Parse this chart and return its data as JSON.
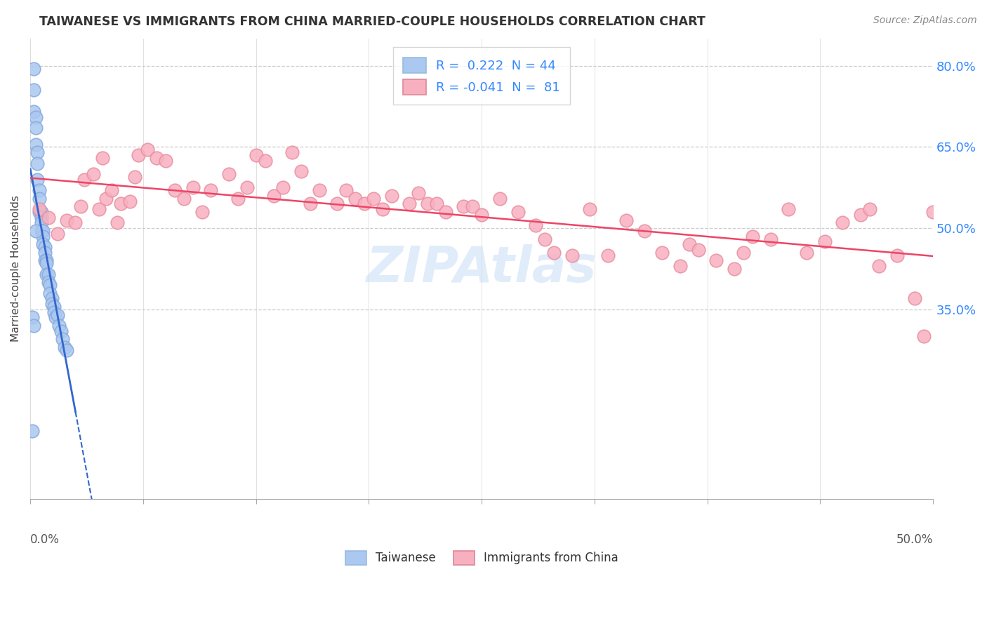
{
  "title": "TAIWANESE VS IMMIGRANTS FROM CHINA MARRIED-COUPLE HOUSEHOLDS CORRELATION CHART",
  "source": "Source: ZipAtlas.com",
  "ylabel": "Married-couple Households",
  "xlim": [
    0.0,
    0.5
  ],
  "ylim": [
    0.0,
    0.85
  ],
  "watermark": "ZIPAtlas",
  "taiwanese_color": "#aac8f0",
  "taiwanese_edge": "#88aadd",
  "china_color": "#f8b0c0",
  "china_edge": "#e890a0",
  "taiwanese_line_color": "#3366cc",
  "china_line_color": "#ee4466",
  "taiwanese_R": 0.222,
  "taiwanese_N": 44,
  "china_R": -0.041,
  "china_N": 81,
  "tw_x": [
    0.002,
    0.002,
    0.002,
    0.003,
    0.003,
    0.003,
    0.004,
    0.004,
    0.004,
    0.005,
    0.005,
    0.005,
    0.006,
    0.006,
    0.006,
    0.006,
    0.007,
    0.007,
    0.007,
    0.008,
    0.008,
    0.008,
    0.009,
    0.009,
    0.009,
    0.01,
    0.01,
    0.011,
    0.011,
    0.012,
    0.012,
    0.013,
    0.013,
    0.014,
    0.015,
    0.016,
    0.017,
    0.018,
    0.019,
    0.02,
    0.001,
    0.001,
    0.002,
    0.003
  ],
  "tw_y": [
    0.795,
    0.755,
    0.715,
    0.705,
    0.685,
    0.655,
    0.64,
    0.62,
    0.59,
    0.57,
    0.555,
    0.53,
    0.53,
    0.52,
    0.51,
    0.495,
    0.495,
    0.485,
    0.47,
    0.465,
    0.455,
    0.44,
    0.44,
    0.435,
    0.415,
    0.415,
    0.4,
    0.395,
    0.38,
    0.37,
    0.36,
    0.355,
    0.345,
    0.335,
    0.34,
    0.32,
    0.31,
    0.295,
    0.28,
    0.275,
    0.335,
    0.125,
    0.32,
    0.495
  ],
  "ch_x": [
    0.005,
    0.01,
    0.015,
    0.02,
    0.025,
    0.028,
    0.03,
    0.035,
    0.038,
    0.04,
    0.042,
    0.045,
    0.048,
    0.05,
    0.055,
    0.058,
    0.06,
    0.065,
    0.07,
    0.075,
    0.08,
    0.085,
    0.09,
    0.095,
    0.1,
    0.11,
    0.115,
    0.12,
    0.125,
    0.13,
    0.135,
    0.14,
    0.145,
    0.15,
    0.155,
    0.16,
    0.17,
    0.175,
    0.18,
    0.185,
    0.19,
    0.195,
    0.2,
    0.21,
    0.215,
    0.22,
    0.225,
    0.23,
    0.24,
    0.245,
    0.25,
    0.26,
    0.27,
    0.28,
    0.285,
    0.29,
    0.3,
    0.31,
    0.32,
    0.33,
    0.34,
    0.35,
    0.36,
    0.365,
    0.37,
    0.38,
    0.39,
    0.395,
    0.4,
    0.41,
    0.42,
    0.43,
    0.44,
    0.45,
    0.46,
    0.465,
    0.47,
    0.48,
    0.49,
    0.495,
    0.5
  ],
  "ch_y": [
    0.535,
    0.52,
    0.49,
    0.515,
    0.51,
    0.54,
    0.59,
    0.6,
    0.535,
    0.63,
    0.555,
    0.57,
    0.51,
    0.545,
    0.55,
    0.595,
    0.635,
    0.645,
    0.63,
    0.625,
    0.57,
    0.555,
    0.575,
    0.53,
    0.57,
    0.6,
    0.555,
    0.575,
    0.635,
    0.625,
    0.56,
    0.575,
    0.64,
    0.605,
    0.545,
    0.57,
    0.545,
    0.57,
    0.555,
    0.545,
    0.555,
    0.535,
    0.56,
    0.545,
    0.565,
    0.545,
    0.545,
    0.53,
    0.54,
    0.54,
    0.525,
    0.555,
    0.53,
    0.505,
    0.48,
    0.455,
    0.45,
    0.535,
    0.45,
    0.515,
    0.495,
    0.455,
    0.43,
    0.47,
    0.46,
    0.44,
    0.425,
    0.455,
    0.485,
    0.48,
    0.535,
    0.455,
    0.475,
    0.51,
    0.525,
    0.535,
    0.43,
    0.45,
    0.37,
    0.3,
    0.53
  ],
  "ytick_vals": [
    0.35,
    0.5,
    0.65,
    0.8
  ],
  "ytick_labels": [
    "35.0%",
    "50.0%",
    "65.0%",
    "80.0%"
  ],
  "xtick_minor_vals": [
    0.0,
    0.0625,
    0.125,
    0.1875,
    0.25,
    0.3125,
    0.375,
    0.4375,
    0.5
  ],
  "title_color": "#333333",
  "source_color": "#888888",
  "right_axis_color": "#3388ff",
  "grid_color": "#cccccc",
  "legend_label1": "R =  0.222  N = 44",
  "legend_label2": "R = -0.041  N =  81"
}
